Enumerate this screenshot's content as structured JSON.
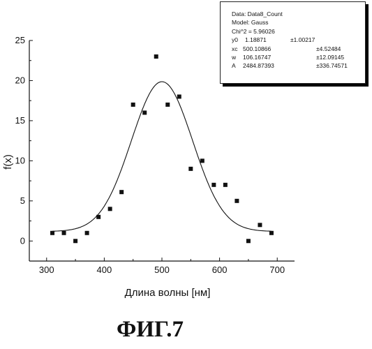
{
  "chart_data": {
    "type": "scatter",
    "xlabel": "Длина волны [нм]",
    "ylabel": "f(x)",
    "xlim": [
      270,
      730
    ],
    "ylim": [
      -2.5,
      25
    ],
    "xticks": [
      "300",
      "400",
      "500",
      "600",
      "700"
    ],
    "yticks": [
      "0",
      "5",
      "10",
      "15",
      "20",
      "25"
    ],
    "points": [
      {
        "x": 310,
        "y": 1.0
      },
      {
        "x": 330,
        "y": 1.0
      },
      {
        "x": 350,
        "y": 0.0
      },
      {
        "x": 370,
        "y": 1.0
      },
      {
        "x": 390,
        "y": 3.0
      },
      {
        "x": 410,
        "y": 4.0
      },
      {
        "x": 430,
        "y": 6.1
      },
      {
        "x": 450,
        "y": 17.0
      },
      {
        "x": 470,
        "y": 16.0
      },
      {
        "x": 490,
        "y": 23.0
      },
      {
        "x": 510,
        "y": 17.0
      },
      {
        "x": 530,
        "y": 18.0
      },
      {
        "x": 550,
        "y": 9.0
      },
      {
        "x": 570,
        "y": 10.0
      },
      {
        "x": 590,
        "y": 7.0
      },
      {
        "x": 610,
        "y": 7.0
      },
      {
        "x": 630,
        "y": 5.0
      },
      {
        "x": 650,
        "y": 0.0
      },
      {
        "x": 670,
        "y": 2.0
      },
      {
        "x": 690,
        "y": 1.0
      }
    ],
    "fit": {
      "model": "Gauss",
      "y0": 1.18871,
      "xc": 500.10866,
      "w": 106.16747,
      "A": 2484.87393,
      "x_range": [
        310,
        690
      ]
    },
    "fit_info": {
      "data_line": "Data: Data8_Count",
      "model_line": "Model: Gauss",
      "chi_line": "Chi^2 = 5.96026",
      "params": [
        {
          "name": "y0",
          "value": "1.18871",
          "error": "±1.00217"
        },
        {
          "name": "xc",
          "value": "500.10866",
          "error": "±4.52484"
        },
        {
          "name": "w",
          "value": "106.16747",
          "error": "±12.09145"
        },
        {
          "name": "A",
          "value": "2484.87393",
          "error": "±336.74571"
        }
      ]
    }
  },
  "caption": "ФИГ.7",
  "colors": {
    "ink": "#111111",
    "background": "#ffffff"
  }
}
